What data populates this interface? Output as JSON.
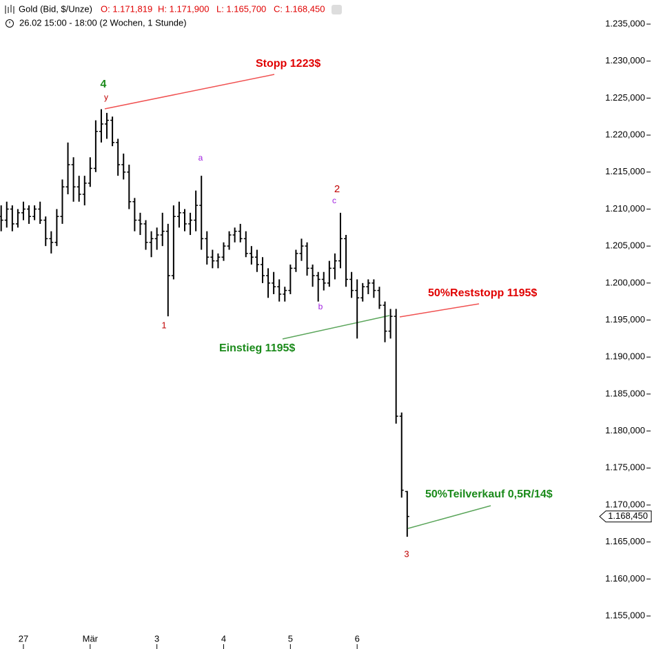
{
  "chart_data": {
    "type": "ohlc",
    "title": "Gold (Bid, $/Unze)",
    "ohlc_header": [
      "O: 1.171,819",
      "H: 1.171,900",
      "L: 1.165,700",
      "C: 1.168,450"
    ],
    "subtitle": "26.02 15:00 - 18:00 (2 Wochen, 1 Stunde)",
    "color": "#000000",
    "categories": [
      null,
      null,
      null,
      null,
      "27",
      null,
      null,
      null,
      null,
      null,
      null,
      null,
      null,
      null,
      null,
      null,
      "Mär",
      null,
      null,
      null,
      null,
      null,
      null,
      null,
      null,
      null,
      null,
      null,
      "3",
      null,
      null,
      null,
      null,
      null,
      null,
      null,
      null,
      null,
      null,
      null,
      "4",
      null,
      null,
      null,
      null,
      null,
      null,
      null,
      null,
      null,
      null,
      null,
      "5",
      null,
      null,
      null,
      null,
      null,
      null,
      null,
      null,
      null,
      null,
      null,
      "6",
      null,
      null,
      null,
      null,
      null,
      null,
      null,
      null,
      null
    ],
    "open": [
      1209,
      1208.5,
      1210,
      1208,
      1209.5,
      1210,
      1209,
      1210,
      1208.5,
      1206,
      1205.5,
      1209,
      1213,
      1216,
      1213,
      1212,
      1213.5,
      1215.5,
      1220.5,
      1221.5,
      1222,
      1219,
      1216,
      1215,
      1211,
      1208.5,
      1208,
      1205.5,
      1206,
      1206.5,
      1207,
      1201,
      1209,
      1209.5,
      1208,
      1208.5,
      1210.5,
      1206,
      1203.5,
      1203,
      1203.5,
      1205,
      1206.5,
      1207,
      1206,
      1204,
      1203.5,
      1202.5,
      1201,
      1200,
      1199.5,
      1198.5,
      1199,
      1202,
      1204,
      1205,
      1202,
      1201,
      1200.5,
      1200,
      1202,
      1203,
      1206,
      1200.5,
      1199,
      1198,
      1199.5,
      1200,
      1199,
      1197,
      1193.5,
      1195.5,
      1182,
      1171.819
    ],
    "high": [
      1210.5,
      1211,
      1210.5,
      1210,
      1211,
      1210.5,
      1210.5,
      1211,
      1209,
      1207,
      1210,
      1214,
      1219,
      1217,
      1214.5,
      1214.5,
      1217,
      1222,
      1223.5,
      1223,
      1222.5,
      1219.5,
      1217.5,
      1216,
      1211.5,
      1209.5,
      1208.5,
      1207,
      1207.5,
      1209.5,
      1208,
      1210.5,
      1211,
      1210,
      1209.5,
      1212.5,
      1214.5,
      1207,
      1204.5,
      1204,
      1205.5,
      1207,
      1207.5,
      1208,
      1207,
      1205,
      1204.5,
      1203.5,
      1202,
      1201.5,
      1200.5,
      1199.5,
      1202.5,
      1204.5,
      1206,
      1205.5,
      1202.5,
      1201.5,
      1201.5,
      1203,
      1204,
      1209.5,
      1206.5,
      1201.5,
      1200.5,
      1200,
      1200.5,
      1200.5,
      1199.5,
      1197.5,
      1196.5,
      1196.5,
      1182.5,
      1171.9
    ],
    "low": [
      1207,
      1207.5,
      1207,
      1207.5,
      1208.5,
      1208,
      1208.5,
      1208,
      1205,
      1204,
      1205,
      1208,
      1212,
      1211,
      1211,
      1210.5,
      1213,
      1215,
      1219,
      1219.5,
      1218.5,
      1214.5,
      1214,
      1210,
      1207,
      1206.5,
      1204.5,
      1203.5,
      1204.5,
      1205,
      1195.5,
      1200.5,
      1207.5,
      1207,
      1206.5,
      1207,
      1204.5,
      1202.5,
      1202,
      1202,
      1203,
      1204.5,
      1205.5,
      1205.5,
      1203.5,
      1202.5,
      1201.5,
      1200,
      1198,
      1198.5,
      1197.5,
      1197.5,
      1198.5,
      1201.5,
      1203,
      1201,
      1199.5,
      1197.5,
      1199,
      1199.5,
      1200.5,
      1202,
      1199.5,
      1198,
      1192.5,
      1197.5,
      1198.5,
      1198,
      1196.5,
      1192,
      1192.5,
      1181,
      1171,
      1165.7
    ],
    "close": [
      1208.5,
      1210,
      1208,
      1209.5,
      1210,
      1209,
      1210,
      1208.5,
      1206,
      1205.5,
      1209,
      1213,
      1216,
      1213,
      1212,
      1213.5,
      1215.5,
      1220.5,
      1221.5,
      1222,
      1219,
      1216,
      1215,
      1211,
      1208.5,
      1208,
      1205.5,
      1206,
      1206.5,
      1207,
      1201,
      1209,
      1209.5,
      1208,
      1208.5,
      1210.5,
      1206,
      1203.5,
      1203,
      1203.5,
      1205,
      1206.5,
      1207,
      1206,
      1204,
      1203.5,
      1202.5,
      1201,
      1200,
      1199.5,
      1198.5,
      1199,
      1202,
      1204,
      1205,
      1202,
      1201,
      1200.5,
      1200,
      1202,
      1203,
      1206,
      1200.5,
      1199,
      1198,
      1199.5,
      1200,
      1199,
      1197,
      1193.5,
      1195.5,
      1182,
      1172,
      1168.45
    ],
    "ylim": [
      1153.05,
      1238.26
    ],
    "yticks": [
      {
        "value": 1235,
        "label": "1.235,000"
      },
      {
        "value": 1230,
        "label": "1.230,000"
      },
      {
        "value": 1225,
        "label": "1.225,000"
      },
      {
        "value": 1220,
        "label": "1.220,000"
      },
      {
        "value": 1215,
        "label": "1.215,000"
      },
      {
        "value": 1210,
        "label": "1.210,000"
      },
      {
        "value": 1205,
        "label": "1.205,000"
      },
      {
        "value": 1200,
        "label": "1.200,000"
      },
      {
        "value": 1195,
        "label": "1.195,000"
      },
      {
        "value": 1190,
        "label": "1.190,000"
      },
      {
        "value": 1185,
        "label": "1.185,000"
      },
      {
        "value": 1180,
        "label": "1.180,000"
      },
      {
        "value": 1175,
        "label": "1.175,000"
      },
      {
        "value": 1170,
        "label": "1.170,000"
      },
      {
        "value": 1165,
        "label": "1.165,000"
      },
      {
        "value": 1160,
        "label": "1.160,000"
      },
      {
        "value": 1155,
        "label": "1.155,000"
      }
    ],
    "last_price": {
      "value": 1168.45,
      "label": "1.168,450"
    },
    "annotations": [
      "Stopp 1223$",
      "4",
      "y",
      "a",
      "2",
      "c",
      "1",
      "b",
      "50%Reststopp 1195$",
      "Einstieg 1195$",
      "50%Teilverkauf 0,5R/14$",
      "3"
    ]
  }
}
